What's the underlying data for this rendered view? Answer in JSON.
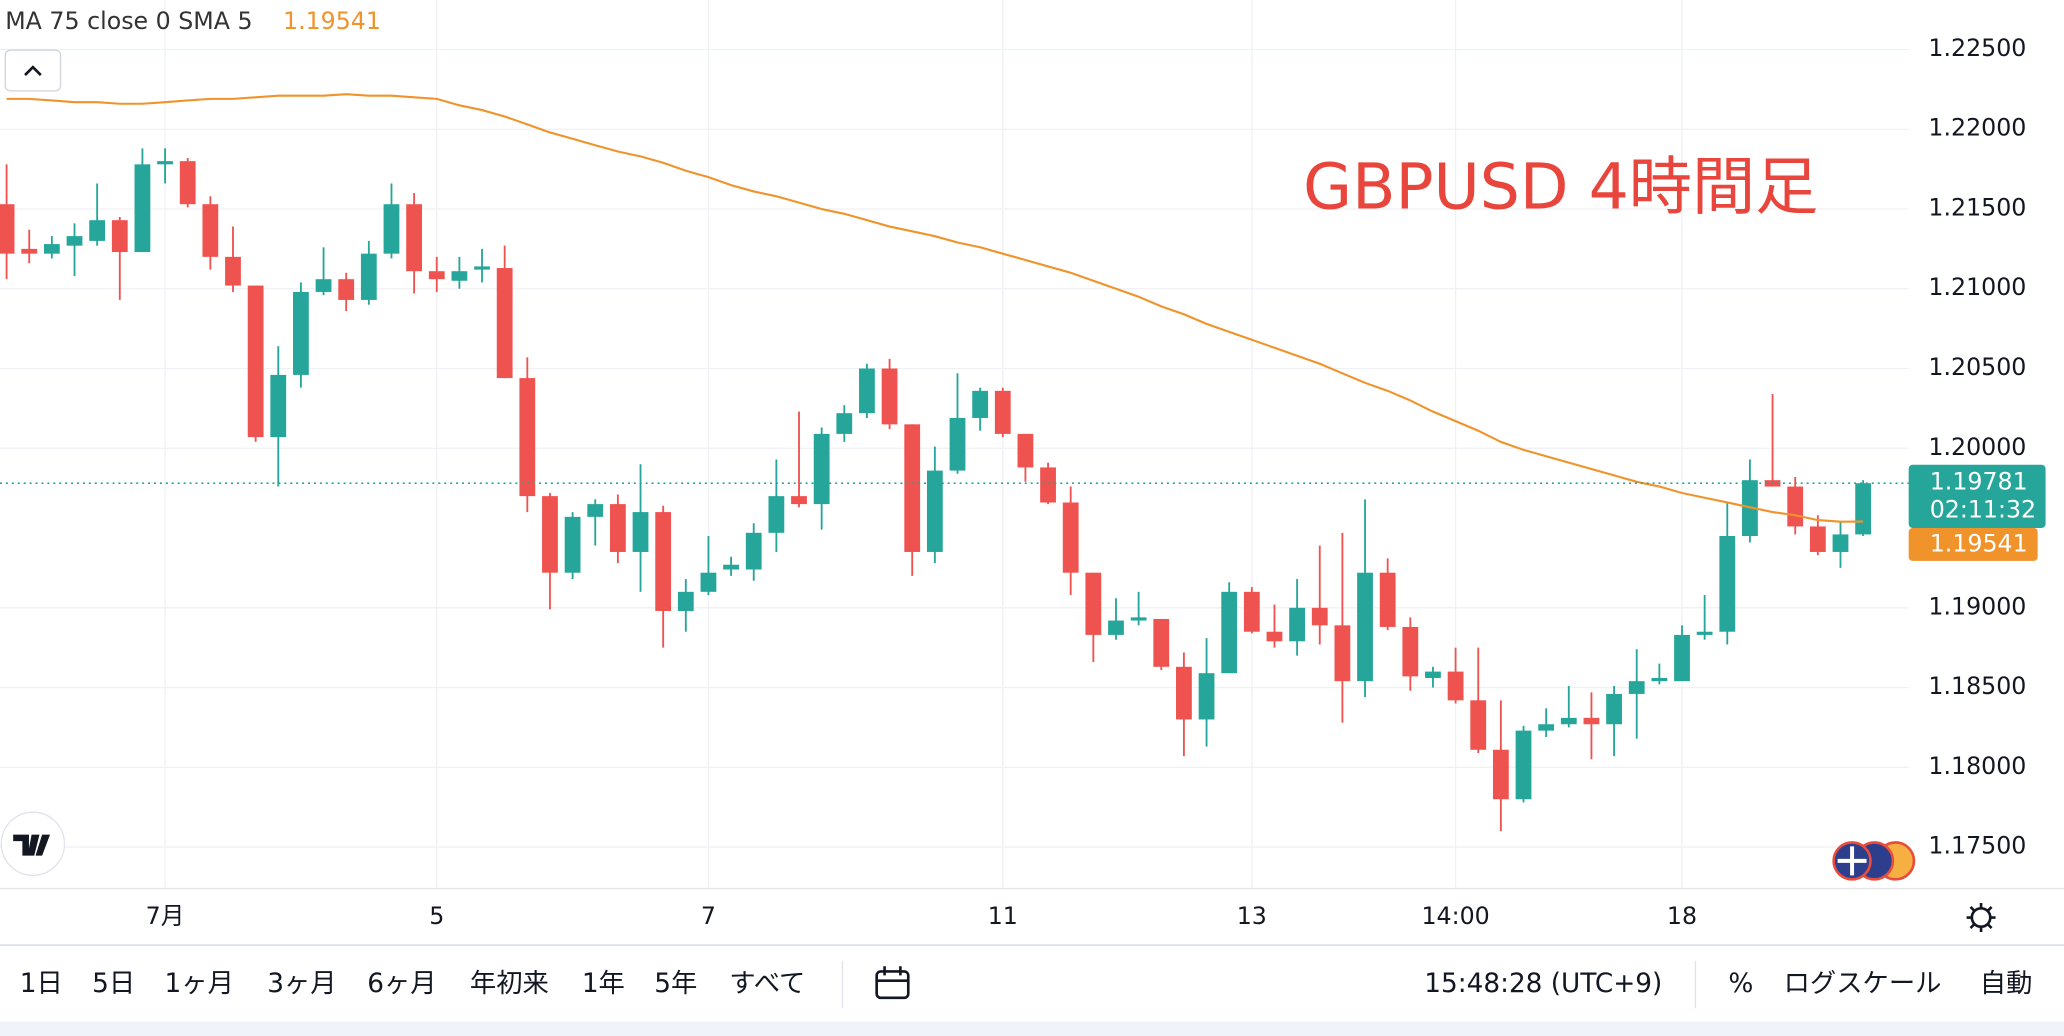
{
  "chart_data": {
    "type": "candlestick",
    "title": "GBPUSD 4時間足",
    "categories": [
      null,
      null,
      null,
      null,
      null,
      null,
      null,
      "7月",
      null,
      null,
      null,
      null,
      null,
      null,
      null,
      null,
      null,
      null,
      null,
      "5",
      null,
      null,
      null,
      null,
      null,
      null,
      null,
      null,
      null,
      null,
      null,
      "7",
      null,
      null,
      null,
      null,
      null,
      null,
      null,
      null,
      null,
      null,
      null,
      null,
      "11",
      null,
      null,
      null,
      null,
      null,
      null,
      null,
      null,
      null,
      null,
      "13",
      null,
      null,
      null,
      null,
      null,
      null,
      null,
      null,
      "14:00",
      null,
      null,
      null,
      null,
      null,
      null,
      null,
      null,
      null,
      "18",
      null,
      null,
      null,
      null,
      null,
      null,
      null,
      null
    ],
    "open": [
      1.2153,
      1.2125,
      1.2122,
      1.2127,
      1.213,
      1.2143,
      1.2123,
      1.2178,
      1.218,
      1.2153,
      1.212,
      1.2102,
      1.2007,
      1.2046,
      1.2098,
      1.2106,
      1.2093,
      1.2122,
      1.2153,
      1.2111,
      1.2105,
      1.2112,
      1.2113,
      1.2044,
      1.197,
      1.1922,
      1.1957,
      1.1965,
      1.1935,
      1.196,
      1.1898,
      1.191,
      1.1924,
      1.1924,
      1.1947,
      1.197,
      1.1965,
      1.2009,
      1.2022,
      1.205,
      1.2015,
      1.1935,
      1.1986,
      1.2019,
      1.2036,
      1.2009,
      1.1988,
      1.1966,
      1.1922,
      1.1883,
      1.1892,
      1.1893,
      1.1863,
      1.183,
      1.1859,
      1.191,
      1.1885,
      1.1879,
      1.19,
      1.1889,
      1.1854,
      1.1922,
      1.1888,
      1.1856,
      1.186,
      1.1842,
      1.1811,
      1.178,
      1.1823,
      1.1827,
      1.1831,
      1.1827,
      1.1846,
      1.1854,
      1.1854,
      1.1883,
      1.1885,
      1.1945,
      1.198,
      1.1976,
      1.1951,
      1.1935,
      1.1946
    ],
    "high": [
      1.2178,
      1.2137,
      1.2133,
      1.2141,
      1.2166,
      1.2145,
      1.2188,
      1.2188,
      1.2182,
      1.2158,
      1.2139,
      1.2102,
      1.2064,
      1.2104,
      1.2126,
      1.211,
      1.213,
      1.2166,
      1.216,
      1.212,
      1.212,
      1.2125,
      1.2127,
      1.2057,
      1.1972,
      1.196,
      1.1968,
      1.1971,
      1.199,
      1.1964,
      1.1918,
      1.1945,
      1.1932,
      1.1953,
      1.1993,
      1.2023,
      1.2013,
      1.2027,
      1.2053,
      1.2056,
      1.2015,
      1.2001,
      1.2047,
      1.2038,
      1.2038,
      1.2009,
      1.1991,
      1.1976,
      1.1922,
      1.1906,
      1.191,
      1.1893,
      1.1872,
      1.1881,
      1.1916,
      1.1913,
      1.1902,
      1.1918,
      1.1939,
      1.1947,
      1.1968,
      1.1931,
      1.1894,
      1.1863,
      1.1875,
      1.1875,
      1.1842,
      1.1826,
      1.1837,
      1.1851,
      1.1847,
      1.1851,
      1.1874,
      1.1865,
      1.1889,
      1.1908,
      1.1966,
      1.1993,
      1.2034,
      1.1982,
      1.1958,
      1.1954,
      1.198
    ],
    "low": [
      1.2106,
      1.2116,
      1.2119,
      1.2108,
      1.2127,
      1.2093,
      1.2123,
      1.2166,
      1.2151,
      1.2112,
      1.2098,
      1.2004,
      1.1976,
      1.2038,
      1.2096,
      1.2086,
      1.209,
      1.2119,
      1.2097,
      1.2098,
      1.21,
      1.2104,
      1.2044,
      1.196,
      1.1899,
      1.1918,
      1.1939,
      1.1928,
      1.191,
      1.1875,
      1.1885,
      1.1908,
      1.192,
      1.1917,
      1.1935,
      1.1963,
      1.1949,
      1.2004,
      1.2019,
      1.2012,
      1.192,
      1.1928,
      1.1984,
      1.2011,
      1.2007,
      1.1979,
      1.1965,
      1.1908,
      1.1866,
      1.188,
      1.1889,
      1.1861,
      1.1807,
      1.1813,
      1.1859,
      1.1884,
      1.1875,
      1.187,
      1.1877,
      1.1828,
      1.1844,
      1.1886,
      1.1848,
      1.185,
      1.184,
      1.1809,
      1.176,
      1.1778,
      1.1819,
      1.1825,
      1.1805,
      1.1807,
      1.1818,
      1.1852,
      1.1854,
      1.188,
      1.1877,
      1.1941,
      1.1976,
      1.1946,
      1.1933,
      1.1925,
      1.1945
    ],
    "close": [
      1.2122,
      1.2122,
      1.2128,
      1.2133,
      1.2143,
      1.2123,
      1.2178,
      1.218,
      1.2153,
      1.212,
      1.2102,
      1.2007,
      1.2046,
      1.2098,
      1.2106,
      1.2093,
      1.2122,
      1.2153,
      1.2111,
      1.2106,
      1.2111,
      1.2114,
      1.2044,
      1.197,
      1.1922,
      1.1957,
      1.1965,
      1.1935,
      1.196,
      1.1898,
      1.191,
      1.1922,
      1.1927,
      1.1947,
      1.197,
      1.1965,
      1.2009,
      1.2022,
      1.205,
      1.2015,
      1.1935,
      1.1986,
      1.2019,
      1.2036,
      1.2009,
      1.1988,
      1.1966,
      1.1922,
      1.1883,
      1.1892,
      1.1894,
      1.1863,
      1.183,
      1.1859,
      1.191,
      1.1885,
      1.1879,
      1.19,
      1.1889,
      1.1854,
      1.1922,
      1.1888,
      1.1857,
      1.186,
      1.1842,
      1.1811,
      1.178,
      1.1823,
      1.1827,
      1.1831,
      1.1827,
      1.1846,
      1.1854,
      1.1856,
      1.1883,
      1.1885,
      1.1945,
      1.198,
      1.1976,
      1.1951,
      1.1935,
      1.1946,
      1.19781
    ],
    "up_color": "#26a69a",
    "down_color": "#ef5350",
    "series": [
      {
        "name": "MA 75 close 0 SMA 5",
        "color": "#f0932b",
        "values": [
          1.2219,
          1.2219,
          1.2218,
          1.2217,
          1.2217,
          1.2216,
          1.2216,
          1.2217,
          1.2218,
          1.2219,
          1.2219,
          1.222,
          1.2221,
          1.2221,
          1.2221,
          1.2222,
          1.2221,
          1.2221,
          1.222,
          1.2219,
          1.2215,
          1.2212,
          1.2208,
          1.2203,
          1.2198,
          1.2194,
          1.219,
          1.2186,
          1.2183,
          1.2179,
          1.2174,
          1.217,
          1.2165,
          1.2161,
          1.2158,
          1.2154,
          1.215,
          1.2147,
          1.2143,
          1.2139,
          1.2136,
          1.2133,
          1.2129,
          1.2126,
          1.2122,
          1.2118,
          1.2114,
          1.211,
          1.2105,
          1.21,
          1.2095,
          1.2089,
          1.2084,
          1.2078,
          1.2073,
          1.2068,
          1.2063,
          1.2058,
          1.2053,
          1.2047,
          1.2041,
          1.2036,
          1.203,
          1.2023,
          1.2017,
          1.2011,
          1.2004,
          1.1999,
          1.1995,
          1.1991,
          1.1987,
          1.1983,
          1.1979,
          1.1976,
          1.1972,
          1.1969,
          1.1966,
          1.1963,
          1.196,
          1.1958,
          1.1955,
          1.1954,
          1.19541
        ]
      }
    ],
    "ylim": [
      1.1724,
      1.2281
    ],
    "yticks": [
      {
        "value": 1.225,
        "label": "1.22500"
      },
      {
        "value": 1.22,
        "label": "1.22000"
      },
      {
        "value": 1.215,
        "label": "1.21500"
      },
      {
        "value": 1.21,
        "label": "1.21000"
      },
      {
        "value": 1.205,
        "label": "1.20500"
      },
      {
        "value": 1.2,
        "label": "1.20000"
      },
      {
        "value": 1.19,
        "label": "1.19000"
      },
      {
        "value": 1.185,
        "label": "1.18500"
      },
      {
        "value": 1.18,
        "label": "1.18000"
      },
      {
        "value": 1.175,
        "label": "1.17500"
      }
    ],
    "grid": true,
    "countdown": "02:11:32"
  },
  "toolbar": {
    "ranges": [
      "1日",
      "5日",
      "1ヶ月",
      "3ヶ月",
      "6ヶ月",
      "年初来",
      "1年",
      "5年",
      "すべて"
    ],
    "time": "15:48:28 (UTC+9)",
    "options": [
      "%",
      "ログスケール",
      "自動"
    ]
  }
}
